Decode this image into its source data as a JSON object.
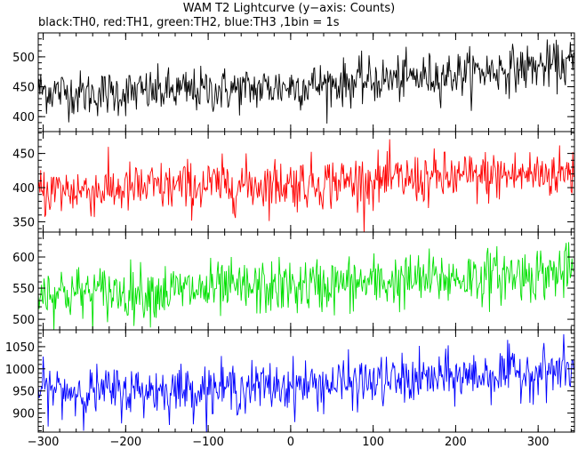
{
  "title": "WAM T2 Lightcurve (y−axis: Counts)",
  "subtitle": "black:TH0, red:TH1, green:TH2, blue:TH3 ,1bin = 1s",
  "chart_data": {
    "type": "line",
    "xlim": [
      -306,
      344
    ],
    "xticks": [
      -300,
      -200,
      -100,
      0,
      100,
      200,
      300
    ],
    "x_start": -306,
    "x_end": 343,
    "bin": 1,
    "panels": [
      {
        "series_name": "TH0",
        "color": "#000000",
        "ylim": [
          375,
          540
        ],
        "yticks": [
          400,
          450,
          500
        ],
        "trend": [
          [
            -306,
            445
          ],
          [
            -250,
            438
          ],
          [
            -150,
            442
          ],
          [
            -50,
            446
          ],
          [
            50,
            455
          ],
          [
            150,
            465
          ],
          [
            250,
            478
          ],
          [
            343,
            488
          ]
        ],
        "noise_sd": 19
      },
      {
        "series_name": "TH1",
        "color": "#ff0000",
        "ylim": [
          335,
          482
        ],
        "yticks": [
          350,
          400,
          450
        ],
        "trend": [
          [
            -306,
            395
          ],
          [
            -200,
            398
          ],
          [
            -100,
            403
          ],
          [
            0,
            406
          ],
          [
            100,
            410
          ],
          [
            200,
            414
          ],
          [
            300,
            420
          ],
          [
            343,
            422
          ]
        ],
        "noise_sd": 19
      },
      {
        "series_name": "TH2",
        "color": "#00e000",
        "ylim": [
          483,
          640
        ],
        "yticks": [
          500,
          550,
          600
        ],
        "trend": [
          [
            -306,
            545
          ],
          [
            -250,
            542
          ],
          [
            -150,
            545
          ],
          [
            -50,
            549
          ],
          [
            50,
            555
          ],
          [
            150,
            562
          ],
          [
            250,
            570
          ],
          [
            343,
            576
          ]
        ],
        "noise_sd": 22
      },
      {
        "series_name": "TH3",
        "color": "#0000ff",
        "ylim": [
          857,
          1088
        ],
        "yticks": [
          900,
          950,
          1000,
          1050
        ],
        "trend": [
          [
            -306,
            955
          ],
          [
            -250,
            948
          ],
          [
            -150,
            952
          ],
          [
            -50,
            958
          ],
          [
            50,
            965
          ],
          [
            150,
            975
          ],
          [
            250,
            988
          ],
          [
            343,
            998
          ]
        ],
        "noise_sd": 28
      }
    ]
  }
}
